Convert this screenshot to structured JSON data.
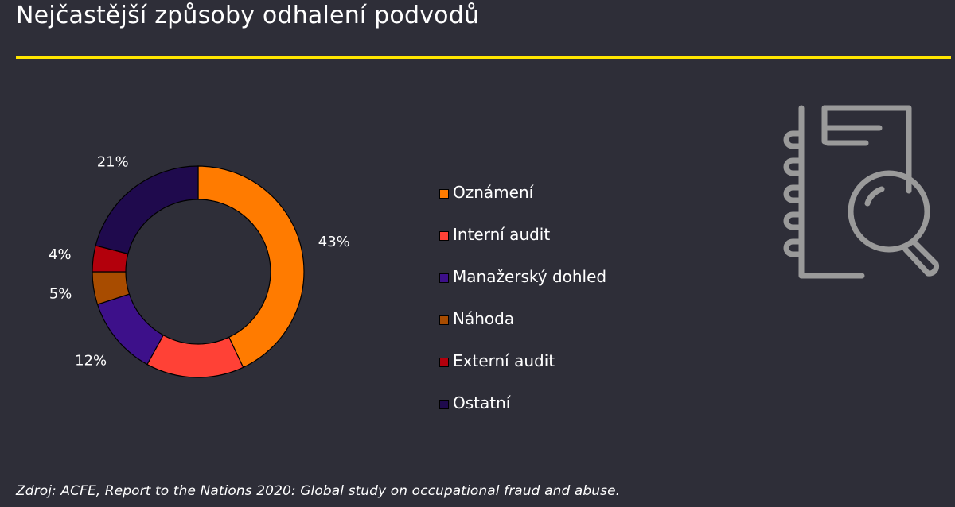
{
  "title": "Nejčastější způsoby odhalení podvodů",
  "source": "Zdroj: ACFE, Report to the Nations 2020: Global study on occupational fraud and abuse.",
  "colors": {
    "background": "#2e2e38",
    "accent_rule": "#ffe600",
    "icon_stroke": "#9a9a9a"
  },
  "icon": "document-search-icon",
  "chart_data": {
    "type": "pie",
    "variant": "donut",
    "legend_position": "right",
    "slices": [
      {
        "label": "Oznámení",
        "value": 43,
        "display": "43%",
        "color": "#ff7b00"
      },
      {
        "label": "Interní audit",
        "value": 15,
        "display": "15%",
        "color": "#ff4136"
      },
      {
        "label": "Manažerský dohled",
        "value": 12,
        "display": "12%",
        "color": "#3d108a"
      },
      {
        "label": "Náhoda",
        "value": 5,
        "display": "5%",
        "color": "#a84c00"
      },
      {
        "label": "Externí audit",
        "value": 4,
        "display": "4%",
        "color": "#b3000c"
      },
      {
        "label": "Ostatní",
        "value": 21,
        "display": "21%",
        "color": "#1f0a4d"
      }
    ]
  }
}
